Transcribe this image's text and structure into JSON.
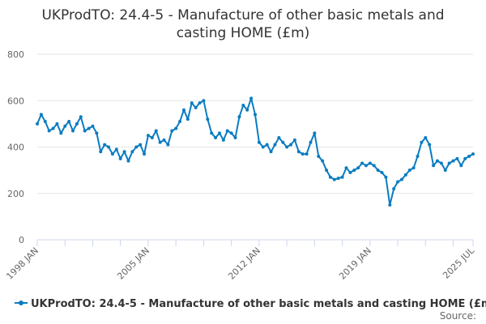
{
  "chart_data": {
    "type": "line",
    "title_lines": [
      "UKProdTO: 24.4-5 - Manufacture of other basic metals and",
      "casting HOME (£m)"
    ],
    "xlabel": "",
    "ylabel": "",
    "ylim": [
      0,
      800
    ],
    "yticks": [
      "0",
      "200",
      "400",
      "600",
      "800"
    ],
    "xticks": [
      "1998 JAN",
      "2005 JAN",
      "2012 JAN",
      "2019 JAN",
      "2025 JUL"
    ],
    "grid": true,
    "legend_position": "bottom",
    "color": "#0a7cc1",
    "series": [
      {
        "name": "UKProdTO: 24.4-5 - Manufacture of other basic metals and casting HOME (£m)",
        "x": [
          "1998-01",
          "1998-04",
          "1998-07",
          "1998-10",
          "1999-01",
          "1999-04",
          "1999-07",
          "1999-10",
          "2000-01",
          "2000-04",
          "2000-07",
          "2000-10",
          "2001-01",
          "2001-04",
          "2001-07",
          "2001-10",
          "2002-01",
          "2002-04",
          "2002-07",
          "2002-10",
          "2003-01",
          "2003-04",
          "2003-07",
          "2003-10",
          "2004-01",
          "2004-04",
          "2004-07",
          "2004-10",
          "2005-01",
          "2005-04",
          "2005-07",
          "2005-10",
          "2006-01",
          "2006-04",
          "2006-07",
          "2006-10",
          "2007-01",
          "2007-04",
          "2007-07",
          "2007-10",
          "2008-01",
          "2008-04",
          "2008-07",
          "2008-10",
          "2009-01",
          "2009-04",
          "2009-07",
          "2009-10",
          "2010-01",
          "2010-04",
          "2010-07",
          "2010-10",
          "2011-01",
          "2011-04",
          "2011-07",
          "2011-10",
          "2012-01",
          "2012-04",
          "2012-07",
          "2012-10",
          "2013-01",
          "2013-04",
          "2013-07",
          "2013-10",
          "2014-01",
          "2014-04",
          "2014-07",
          "2014-10",
          "2015-01",
          "2015-04",
          "2015-07",
          "2015-10",
          "2016-01",
          "2016-04",
          "2016-07",
          "2016-10",
          "2017-01",
          "2017-04",
          "2017-07",
          "2017-10",
          "2018-01",
          "2018-04",
          "2018-07",
          "2018-10",
          "2019-01",
          "2019-04",
          "2019-07",
          "2019-10",
          "2020-01",
          "2020-04",
          "2020-07",
          "2020-10",
          "2021-01",
          "2021-04",
          "2021-07",
          "2021-10",
          "2022-01",
          "2022-04",
          "2022-07",
          "2022-10",
          "2023-01",
          "2023-04",
          "2023-07",
          "2023-10",
          "2024-01",
          "2024-04",
          "2024-07",
          "2024-10",
          "2025-01",
          "2025-04",
          "2025-07"
        ],
        "values": [
          500,
          540,
          510,
          470,
          480,
          500,
          460,
          490,
          510,
          470,
          500,
          530,
          470,
          480,
          490,
          460,
          380,
          410,
          400,
          370,
          390,
          350,
          380,
          340,
          380,
          400,
          410,
          370,
          450,
          440,
          470,
          420,
          430,
          410,
          470,
          480,
          510,
          560,
          520,
          590,
          570,
          590,
          600,
          520,
          460,
          440,
          460,
          430,
          470,
          460,
          440,
          530,
          580,
          560,
          610,
          540,
          420,
          400,
          410,
          380,
          410,
          440,
          420,
          400,
          410,
          430,
          380,
          370,
          370,
          420,
          460,
          360,
          340,
          300,
          270,
          260,
          265,
          270,
          310,
          290,
          300,
          310,
          330,
          320,
          330,
          320,
          300,
          290,
          270,
          150,
          220,
          250,
          260,
          280,
          300,
          310,
          360,
          420,
          440,
          410,
          320,
          340,
          330,
          300,
          330,
          340,
          350,
          320,
          350,
          360,
          370
        ]
      }
    ]
  },
  "source_label": "Source:"
}
